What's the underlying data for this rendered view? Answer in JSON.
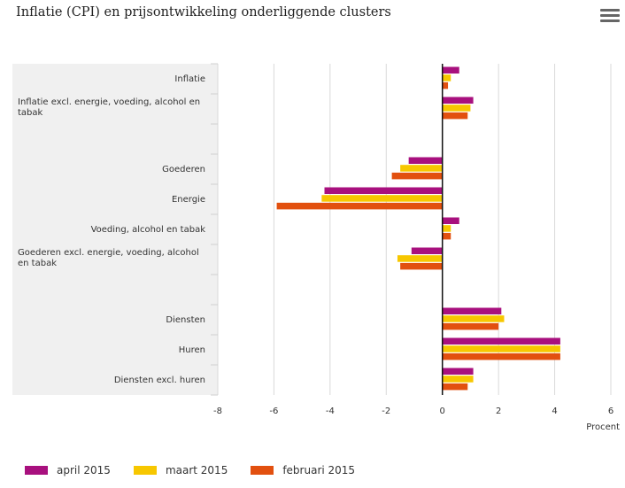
{
  "header": {
    "title": "Inflatie (CPI) en prijsontwikkeling onderliggende clusters",
    "menu_icon": "hamburger-menu-icon"
  },
  "colors": {
    "april": "#a8107e",
    "maart": "#f7c700",
    "februari": "#e2500f",
    "panel": "#f0f0f0",
    "grid": "#d9d9d9"
  },
  "chart_data": {
    "type": "bar",
    "orientation": "horizontal",
    "title": "Inflatie (CPI) en prijsontwikkeling onderliggende clusters",
    "xlabel": "Procent",
    "xlim": [
      -8,
      6
    ],
    "xticks": [
      -8,
      -6,
      -4,
      -2,
      0,
      2,
      4,
      6
    ],
    "legend_position": "bottom-left",
    "grid": true,
    "categories": [
      [
        "Inflatie"
      ],
      [
        "Inflatie excl. energie, voeding, alcohol en",
        "tabak"
      ],
      [],
      [
        "Goederen"
      ],
      [
        "Energie"
      ],
      [
        "Voeding, alcohol en tabak"
      ],
      [
        "Goederen excl. energie, voeding, alcohol",
        "en tabak"
      ],
      [],
      [
        "Diensten"
      ],
      [
        "Huren"
      ],
      [
        "Diensten excl. huren"
      ]
    ],
    "series": [
      {
        "name": "april 2015",
        "values": [
          0.6,
          1.1,
          null,
          -1.2,
          -4.2,
          0.6,
          -1.1,
          null,
          2.1,
          4.2,
          1.1
        ]
      },
      {
        "name": "maart 2015",
        "values": [
          0.3,
          1.0,
          null,
          -1.5,
          -4.3,
          0.3,
          -1.6,
          null,
          2.2,
          4.2,
          1.1
        ]
      },
      {
        "name": "februari 2015",
        "values": [
          0.2,
          0.9,
          null,
          -1.8,
          -5.9,
          0.3,
          -1.5,
          null,
          2.0,
          4.2,
          0.9
        ]
      }
    ]
  },
  "legend": [
    {
      "label": "april 2015"
    },
    {
      "label": "maart 2015"
    },
    {
      "label": "februari 2015"
    }
  ]
}
